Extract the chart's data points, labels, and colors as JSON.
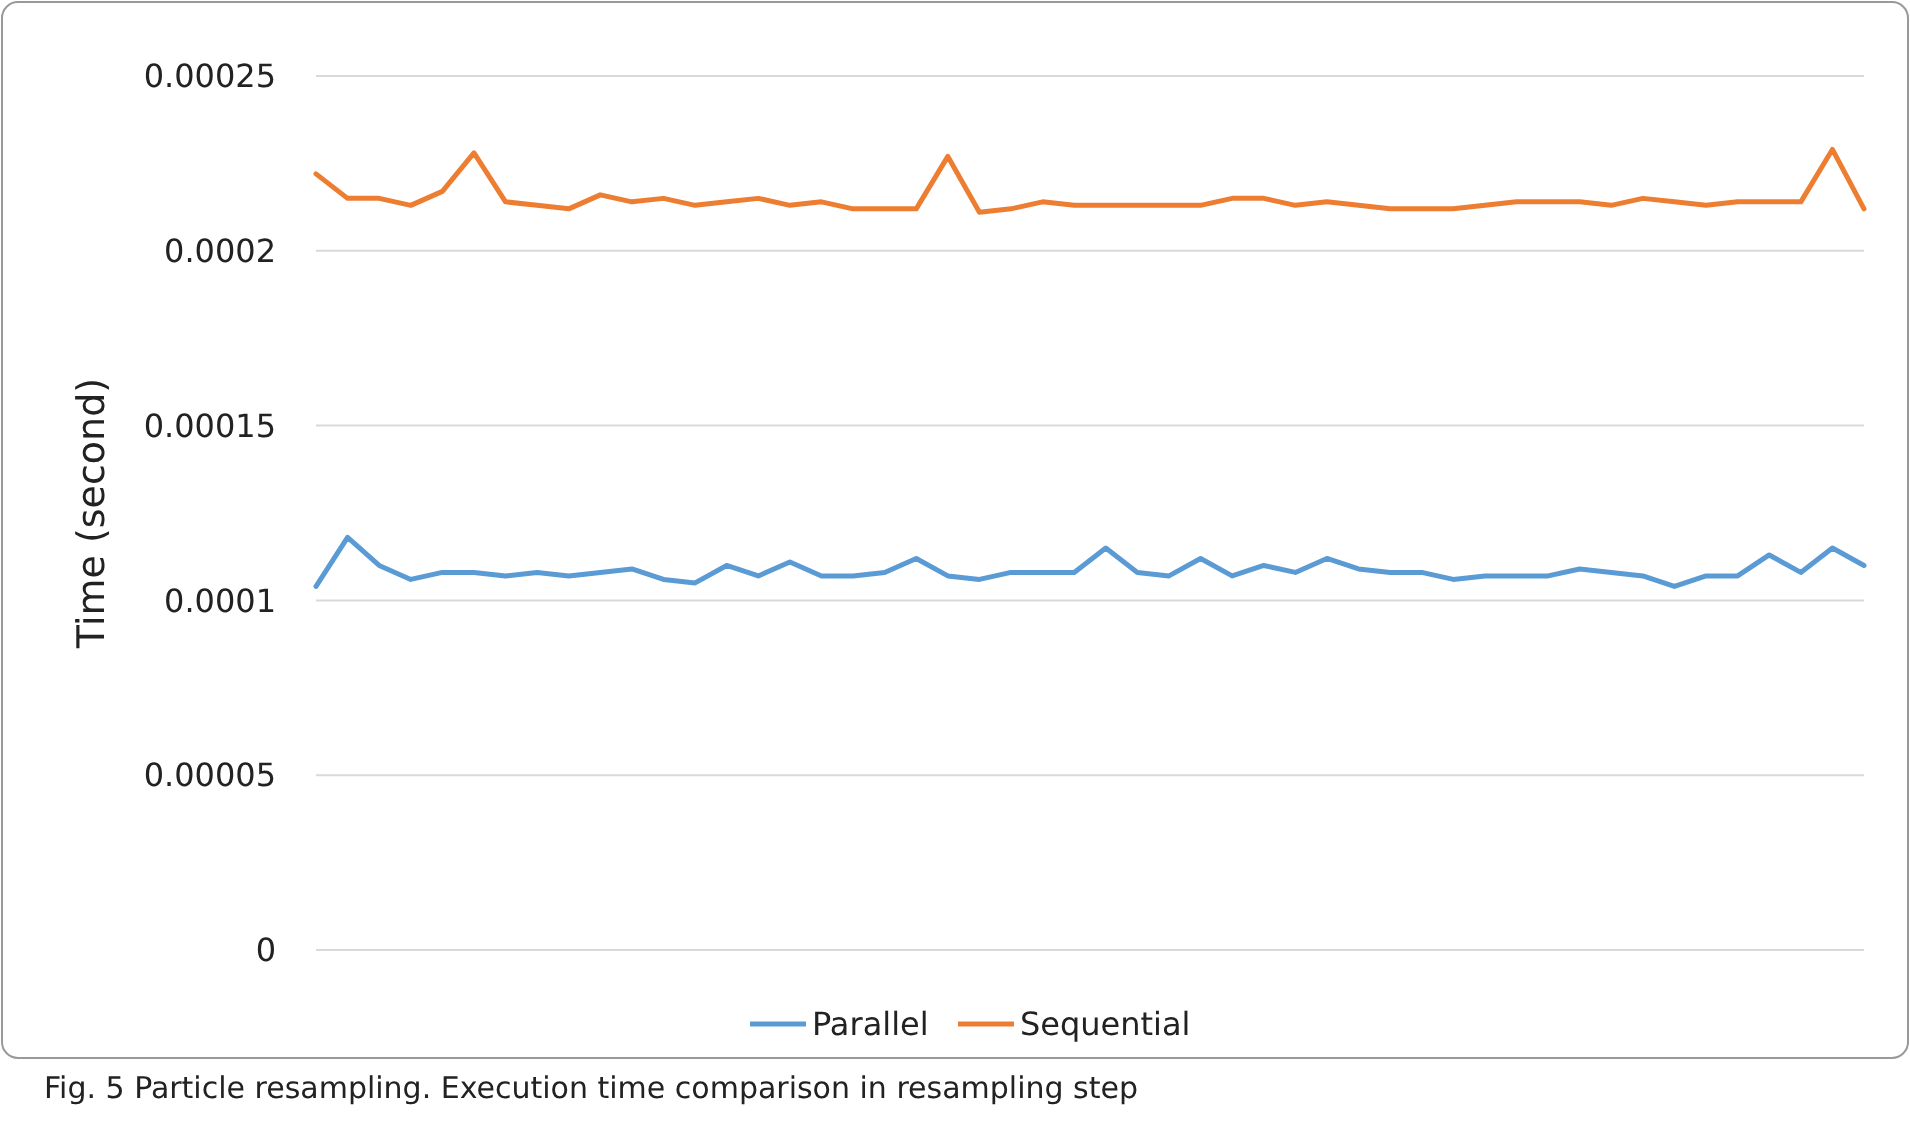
{
  "chart_data": {
    "type": "line",
    "ylabel": "Time (second)",
    "annotations": [
      "Fig. 5  Particle resampling. Execution time comparison in resampling step"
    ],
    "categories": [
      null,
      null,
      null,
      null,
      null,
      null,
      null,
      null,
      null,
      null,
      null,
      null,
      null,
      null,
      null,
      null,
      null,
      null,
      null,
      null,
      null,
      null,
      null,
      null,
      null,
      null,
      null,
      null,
      null,
      null,
      null,
      null,
      null,
      null,
      null,
      null,
      null,
      null,
      null,
      null,
      null,
      null,
      null,
      null,
      null,
      null,
      null,
      null,
      null,
      null
    ],
    "ylim": [
      0,
      0.00025
    ],
    "yticks": [
      {
        "value": 0,
        "label": "0"
      },
      {
        "value": 5e-05,
        "label": "0.00005"
      },
      {
        "value": 0.0001,
        "label": "0.0001"
      },
      {
        "value": 0.00015,
        "label": "0.00015"
      },
      {
        "value": 0.0002,
        "label": "0.0002"
      },
      {
        "value": 0.00025,
        "label": "0.00025"
      }
    ],
    "grid": "y",
    "legend": "bottom",
    "marker": "none",
    "line_style": "solid",
    "series": [
      {
        "name": "Parallel",
        "color": "#5b9bd5",
        "values": [
          0.000104,
          0.000118,
          0.00011,
          0.000106,
          0.000108,
          0.000108,
          0.000107,
          0.000108,
          0.000107,
          0.000108,
          0.000109,
          0.000106,
          0.000105,
          0.00011,
          0.000107,
          0.000111,
          0.000107,
          0.000107,
          0.000108,
          0.000112,
          0.000107,
          0.000106,
          0.000108,
          0.000108,
          0.000108,
          0.000115,
          0.000108,
          0.000107,
          0.000112,
          0.000107,
          0.00011,
          0.000108,
          0.000112,
          0.000109,
          0.000108,
          0.000108,
          0.000106,
          0.000107,
          0.000107,
          0.000107,
          0.000109,
          0.000108,
          0.000107,
          0.000104,
          0.000107,
          0.000107,
          0.000113,
          0.000108,
          0.000115,
          0.00011
        ]
      },
      {
        "name": "Sequential",
        "color": "#ed7d31",
        "values": [
          0.000222,
          0.000215,
          0.000215,
          0.000213,
          0.000217,
          0.000228,
          0.000214,
          0.000213,
          0.000212,
          0.000216,
          0.000214,
          0.000215,
          0.000213,
          0.000214,
          0.000215,
          0.000213,
          0.000214,
          0.000212,
          0.000212,
          0.000212,
          0.000227,
          0.000211,
          0.000212,
          0.000214,
          0.000213,
          0.000213,
          0.000213,
          0.000213,
          0.000213,
          0.000215,
          0.000215,
          0.000213,
          0.000214,
          0.000213,
          0.000212,
          0.000212,
          0.000212,
          0.000213,
          0.000214,
          0.000214,
          0.000214,
          0.000213,
          0.000215,
          0.000214,
          0.000213,
          0.000214,
          0.000214,
          0.000214,
          0.000229,
          0.000212
        ]
      }
    ]
  }
}
